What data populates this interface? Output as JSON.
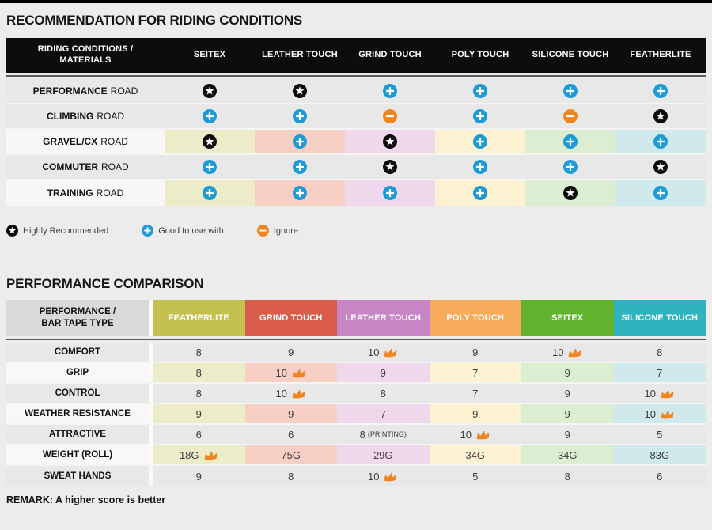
{
  "page": {
    "bg": "#ececec",
    "top_bar_color": "#000000"
  },
  "colors": {
    "plus_blue": "#1d9bd7",
    "minus_orange": "#ee8722",
    "star_black": "#0d0d0d",
    "crown_orange": "#ee8722",
    "plain_row_bg": "#e8e8e8",
    "tinted_row_label_bg": "#f7f7f7"
  },
  "riding_table": {
    "title": "RECOMMENDATION FOR RIDING CONDITIONS",
    "corner": {
      "line1": "RIDING CONDITIONS /",
      "line2": "MATERIALS"
    },
    "columns": [
      "SEITEX",
      "LEATHER TOUCH",
      "GRIND TOUCH",
      "POLY TOUCH",
      "SILICONE TOUCH",
      "FEATHERLITE"
    ],
    "column_tints": [
      "#edecc9",
      "#f8cfc4",
      "#f0d8ec",
      "#fdf3d3",
      "#dceed1",
      "#cfe9ed"
    ],
    "rows": [
      {
        "label_bold": "PERFORMANCE",
        "label_rest": "ROAD",
        "tinted": false,
        "cells": [
          "star",
          "star",
          "plus",
          "plus",
          "plus",
          "plus"
        ]
      },
      {
        "label_bold": "CLIMBING",
        "label_rest": "ROAD",
        "tinted": false,
        "cells": [
          "plus",
          "plus",
          "minus",
          "plus",
          "minus",
          "star"
        ]
      },
      {
        "label_bold": "GRAVEL/CX",
        "label_rest": "ROAD",
        "tinted": true,
        "cells": [
          "star",
          "plus",
          "star",
          "plus",
          "plus",
          "plus"
        ]
      },
      {
        "label_bold": "COMMUTER",
        "label_rest": "ROAD",
        "tinted": false,
        "cells": [
          "plus",
          "plus",
          "star",
          "plus",
          "plus",
          "star"
        ]
      },
      {
        "label_bold": "TRAINING",
        "label_rest": "ROAD",
        "tinted": true,
        "cells": [
          "plus",
          "plus",
          "plus",
          "plus",
          "star",
          "plus"
        ]
      }
    ],
    "legend": [
      {
        "icon": "star",
        "label": "Highly Recommended"
      },
      {
        "icon": "plus",
        "label": "Good to use with"
      },
      {
        "icon": "minus",
        "label": "Ignore"
      }
    ]
  },
  "performance_table": {
    "title": "PERFORMANCE COMPARISON",
    "corner": {
      "line1": "PERFORMANCE /",
      "line2": "BAR TAPE TYPE"
    },
    "columns": [
      {
        "label": "FEATHERLITE",
        "color": "#c3c050",
        "tint": "#edecc9"
      },
      {
        "label": "GRIND TOUCH",
        "color": "#d85c49",
        "tint": "#f8cfc4"
      },
      {
        "label": "LEATHER TOUCH",
        "color": "#c685c4",
        "tint": "#f0d8ec"
      },
      {
        "label": "POLY TOUCH",
        "color": "#f6ab5b",
        "tint": "#fdf3d3"
      },
      {
        "label": "SEITEX",
        "color": "#61b32e",
        "tint": "#dceed1"
      },
      {
        "label": "SILICONE TOUCH",
        "color": "#2fb3be",
        "tint": "#cfe9ed"
      }
    ],
    "rows": [
      {
        "label": "COMFORT",
        "tinted": false,
        "cells": [
          {
            "v": "8"
          },
          {
            "v": "9"
          },
          {
            "v": "10",
            "crown": true
          },
          {
            "v": "9"
          },
          {
            "v": "10",
            "crown": true
          },
          {
            "v": "8"
          }
        ]
      },
      {
        "label": "GRIP",
        "tinted": true,
        "cells": [
          {
            "v": "8"
          },
          {
            "v": "10",
            "crown": true
          },
          {
            "v": "9"
          },
          {
            "v": "7"
          },
          {
            "v": "9"
          },
          {
            "v": "7"
          }
        ]
      },
      {
        "label": "CONTROL",
        "tinted": false,
        "cells": [
          {
            "v": "8"
          },
          {
            "v": "10",
            "crown": true
          },
          {
            "v": "8"
          },
          {
            "v": "7"
          },
          {
            "v": "9"
          },
          {
            "v": "10",
            "crown": true
          }
        ]
      },
      {
        "label": "WEATHER RESISTANCE",
        "tinted": true,
        "cells": [
          {
            "v": "9"
          },
          {
            "v": "9"
          },
          {
            "v": "7"
          },
          {
            "v": "9"
          },
          {
            "v": "9"
          },
          {
            "v": "10",
            "crown": true
          }
        ]
      },
      {
        "label": "ATTRACTIVE",
        "tinted": false,
        "cells": [
          {
            "v": "6"
          },
          {
            "v": "6"
          },
          {
            "v": "8",
            "suffix": "(PRINTING)"
          },
          {
            "v": "10",
            "crown": true
          },
          {
            "v": "9"
          },
          {
            "v": "5"
          }
        ]
      },
      {
        "label": "WEIGHT (ROLL)",
        "tinted": true,
        "cells": [
          {
            "v": "18G",
            "crown": true
          },
          {
            "v": "75G"
          },
          {
            "v": "29G"
          },
          {
            "v": "34G"
          },
          {
            "v": "34G"
          },
          {
            "v": "83G"
          }
        ]
      },
      {
        "label": "SWEAT HANDS",
        "tinted": false,
        "cells": [
          {
            "v": "9"
          },
          {
            "v": "8"
          },
          {
            "v": "10",
            "crown": true
          },
          {
            "v": "5"
          },
          {
            "v": "8"
          },
          {
            "v": "6"
          }
        ]
      }
    ],
    "remark": "REMARK: A higher score is better"
  }
}
